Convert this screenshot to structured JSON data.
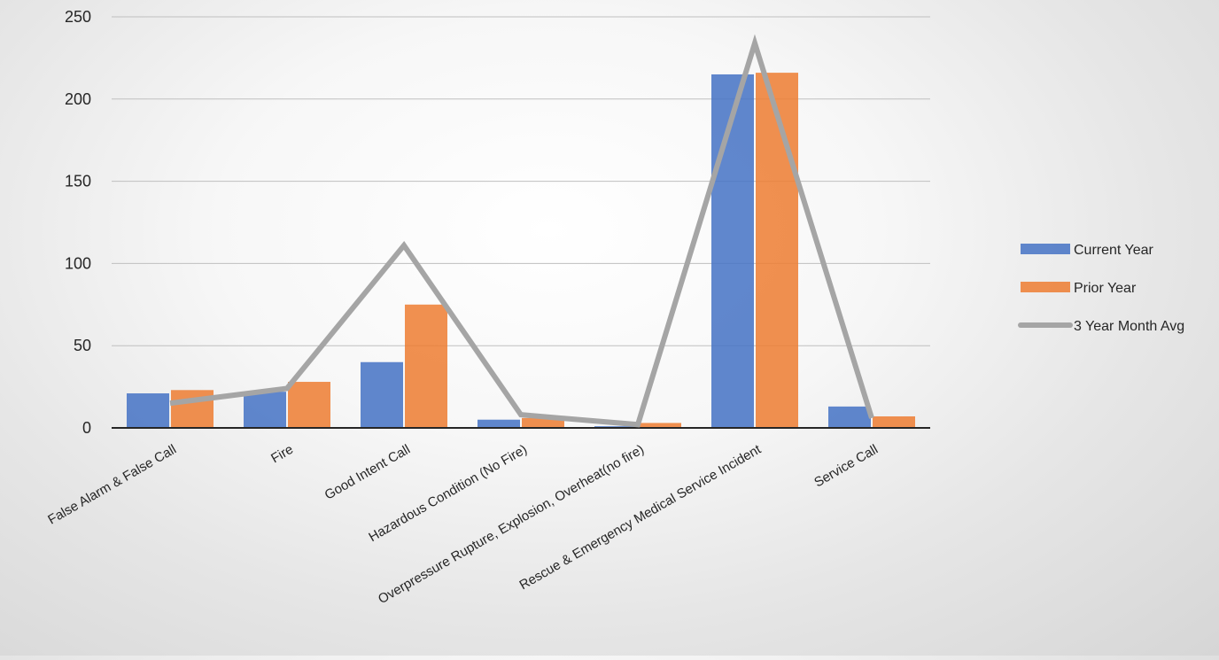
{
  "chart_data": {
    "type": "bar",
    "categories": [
      "False Alarm & False Call",
      "Fire",
      "Good Intent Call",
      "Hazardous Condition (No Fire)",
      "Overpressure Rupture, Explosion, Overheat(no fire)",
      "Rescue & Emergency Medical Service Incident",
      "Service Call"
    ],
    "series": [
      {
        "name": "Current Year",
        "type": "bar",
        "color": "#4472C4",
        "values": [
          21,
          22,
          40,
          5,
          1,
          215,
          13
        ]
      },
      {
        "name": "Prior Year",
        "type": "bar",
        "color": "#ED7D31",
        "values": [
          23,
          28,
          75,
          6,
          3,
          216,
          7
        ]
      },
      {
        "name": "3 Year Month Avg",
        "type": "line",
        "color": "#A5A5A5",
        "values": [
          15,
          24,
          111,
          8,
          2,
          234,
          6
        ]
      }
    ],
    "yticks": [
      "0",
      "50",
      "100",
      "150",
      "200",
      "250"
    ],
    "ylim": [
      0,
      250
    ],
    "grid": true,
    "legend_position": "right"
  }
}
